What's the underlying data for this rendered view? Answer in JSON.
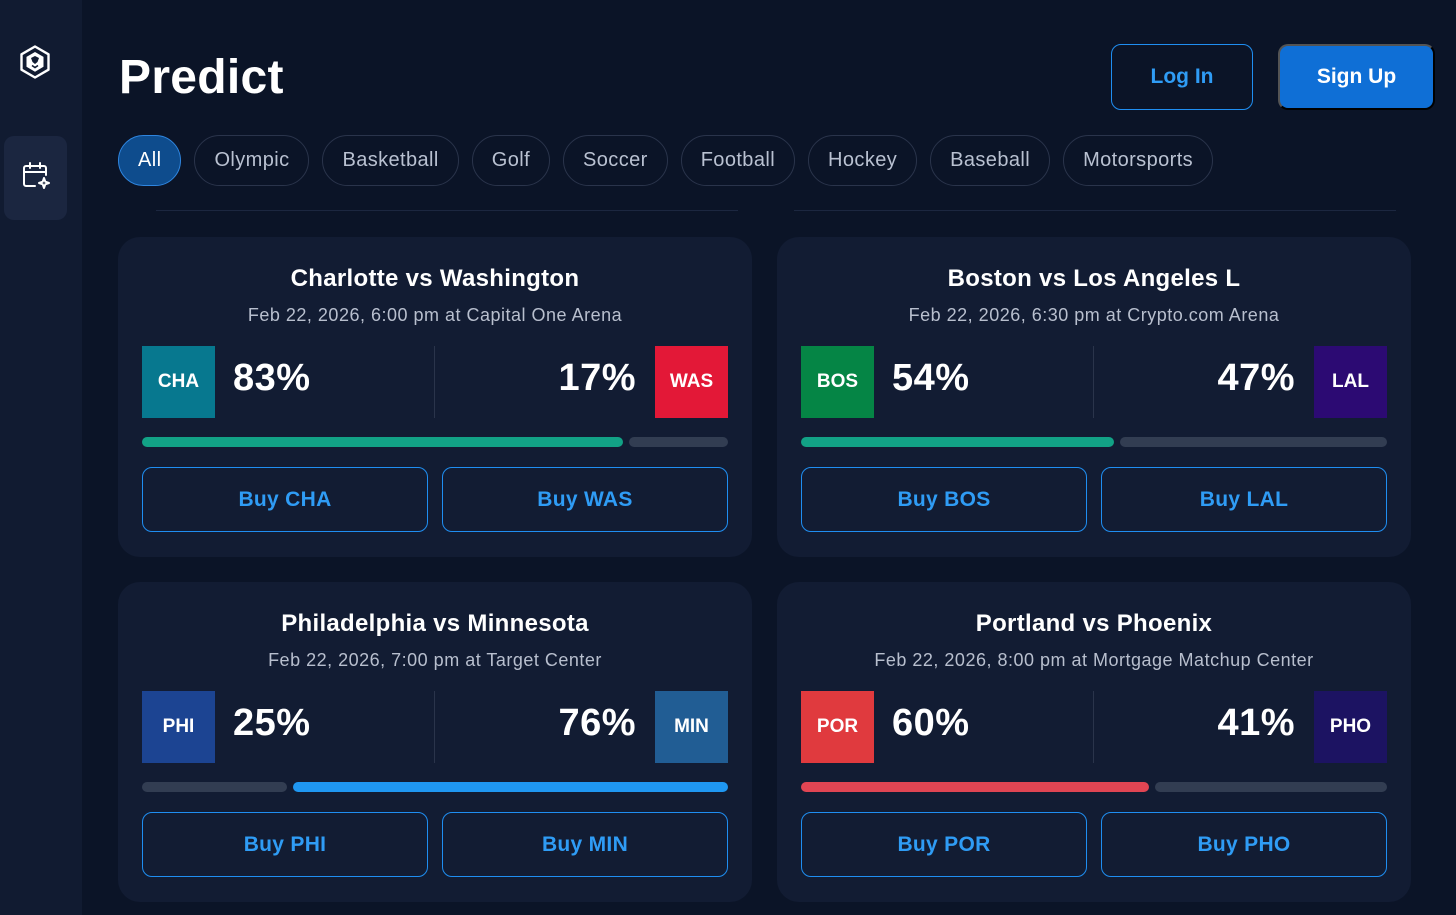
{
  "page": {
    "title": "Predict"
  },
  "auth": {
    "login_label": "Log In",
    "signup_label": "Sign Up"
  },
  "sidebar": {
    "items": [
      {
        "icon": "calendar-sparkle-icon"
      }
    ]
  },
  "filters": [
    {
      "label": "All",
      "active": true
    },
    {
      "label": "Olympic"
    },
    {
      "label": "Basketball"
    },
    {
      "label": "Golf"
    },
    {
      "label": "Soccer"
    },
    {
      "label": "Football"
    },
    {
      "label": "Hockey"
    },
    {
      "label": "Baseball"
    },
    {
      "label": "Motorsports"
    }
  ],
  "games": [
    {
      "title": "Charlotte vs Washington",
      "subtitle": "Feb 22, 2026, 6:00 pm at Capital One Arena",
      "home": {
        "abbr": "CHA",
        "pct": "83%",
        "color": "#07788f",
        "buy_label": "Buy CHA"
      },
      "away": {
        "abbr": "WAS",
        "pct": "17%",
        "color": "#e31837",
        "buy_label": "Buy WAS"
      },
      "bar": {
        "left_fraction": 0.83,
        "left_color": "#12a286",
        "right_color": "#323d52"
      }
    },
    {
      "title": "Boston vs Los Angeles L",
      "subtitle": "Feb 22, 2026, 6:30 pm at Crypto.com Arena",
      "home": {
        "abbr": "BOS",
        "pct": "54%",
        "color": "#058545",
        "buy_label": "Buy BOS"
      },
      "away": {
        "abbr": "LAL",
        "pct": "47%",
        "color": "#2c0a73",
        "buy_label": "Buy LAL"
      },
      "bar": {
        "left_fraction": 0.54,
        "left_color": "#12a286",
        "right_color": "#323d52"
      }
    },
    {
      "title": "Philadelphia vs Minnesota",
      "subtitle": "Feb 22, 2026, 7:00 pm at Target Center",
      "home": {
        "abbr": "PHI",
        "pct": "25%",
        "color": "#1c4492",
        "buy_label": "Buy PHI"
      },
      "away": {
        "abbr": "MIN",
        "pct": "76%",
        "color": "#215d94",
        "buy_label": "Buy MIN"
      },
      "bar": {
        "left_fraction": 0.25,
        "left_color": "#323d52",
        "right_color": "#1f97f2"
      }
    },
    {
      "title": "Portland vs Phoenix",
      "subtitle": "Feb 22, 2026, 8:00 pm at Mortgage Matchup Center",
      "home": {
        "abbr": "POR",
        "pct": "60%",
        "color": "#e03a3e",
        "buy_label": "Buy POR"
      },
      "away": {
        "abbr": "PHO",
        "pct": "41%",
        "color": "#1c1362",
        "buy_label": "Buy PHO"
      },
      "bar": {
        "left_fraction": 0.6,
        "left_color": "#e04553",
        "right_color": "#323d52"
      }
    }
  ]
}
